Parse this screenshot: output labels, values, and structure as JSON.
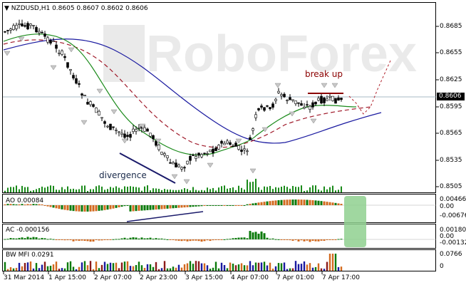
{
  "main": {
    "symbol_line": "NZDUSD,H1  0.8605 0.8607 0.8602 0.8606",
    "current_price": "0.8606",
    "price_axis": [
      "0.8685",
      "0.8655",
      "0.8625",
      "0.8595",
      "0.8565",
      "0.8535",
      "0.8505"
    ],
    "watermark": "RoboForex",
    "annotation_break": "break up",
    "annotation_divergence": "divergence"
  },
  "ao": {
    "label": "AO 0.00084",
    "axis": [
      "0.00466",
      "0.00",
      "-0.00676"
    ]
  },
  "ac": {
    "label": "AC -0.000156",
    "axis": [
      "0.001804",
      "0.00",
      "-0.00132"
    ]
  },
  "bw": {
    "label": "BW MFI 0.0291",
    "axis": [
      "0.0766",
      "0"
    ]
  },
  "time_axis": [
    "31 Mar 2014",
    "1 Apr 15:00",
    "2 Apr 07:00",
    "2 Apr 23:00",
    "3 Apr 15:00",
    "4 Apr 07:00",
    "7 Apr 01:00",
    "7 Apr 17:00"
  ],
  "colors": {
    "up": "#0a7a0a",
    "down": "#d2691e",
    "ma_fast": "#1a8a1a",
    "ma_slow": "#1a1aa0",
    "ma_mid": "#a01a2a",
    "hl": "#8b0000"
  }
}
